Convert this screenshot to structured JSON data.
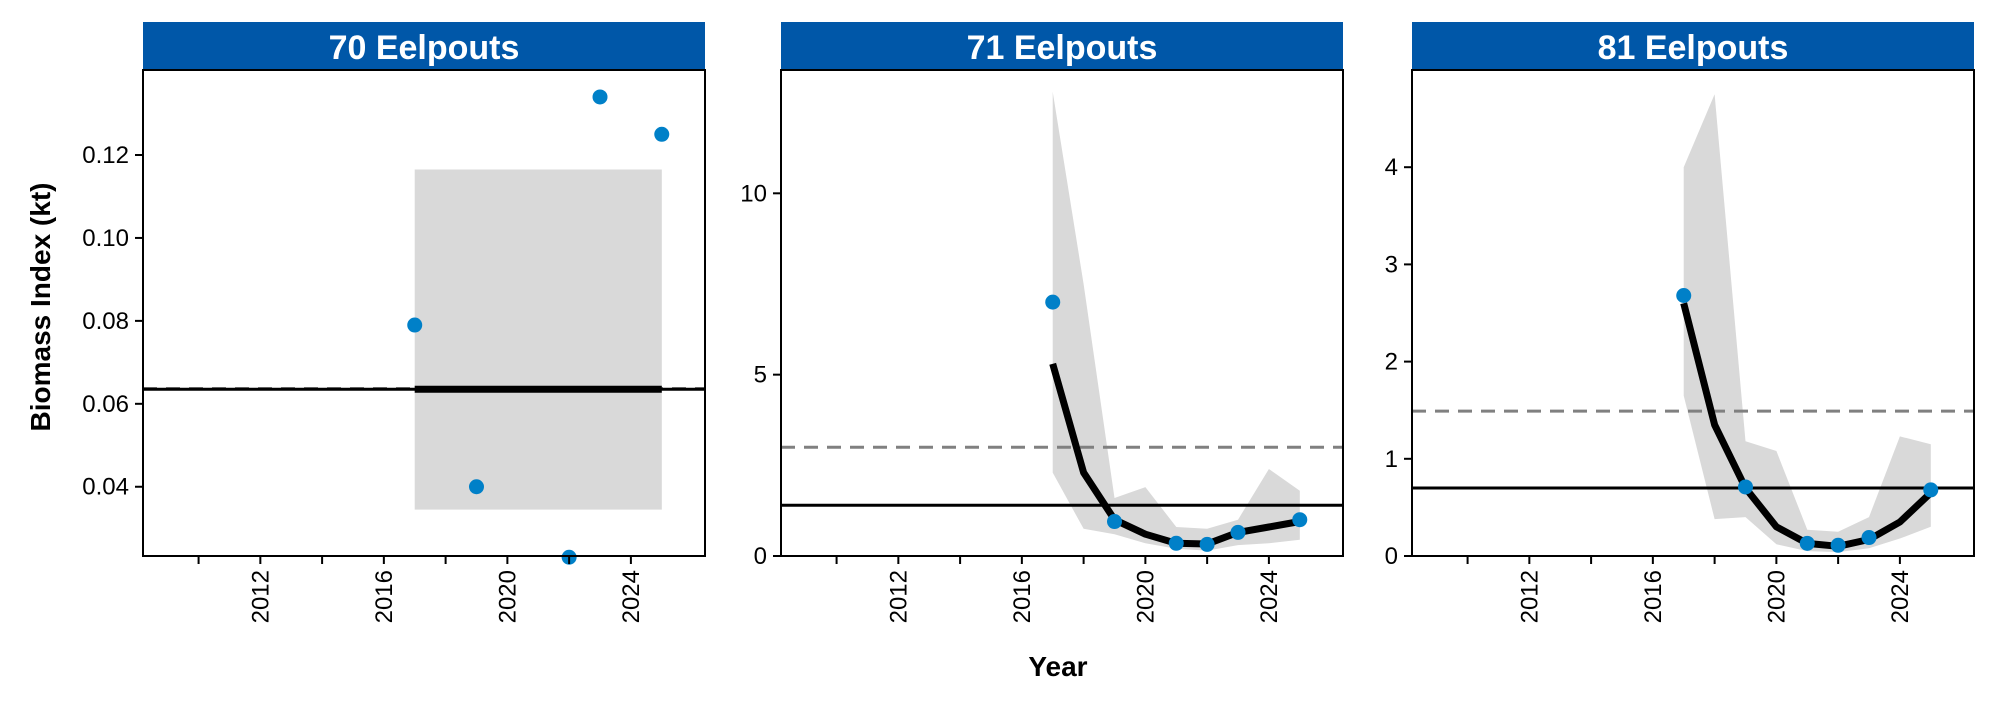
{
  "chart_data": {
    "type": "line",
    "xlabel": "Year",
    "ylabel": "Biomass Index (kt)",
    "colors": {
      "strip": "#0057a8",
      "points": "#0080c8",
      "ribbon": "#d9d9d9",
      "fit_line": "#000000",
      "mean_line": "#000000",
      "dashed_line": "#808080"
    },
    "panels": [
      {
        "title": "70 Eelpouts",
        "xlim": [
          2008.2,
          2026.4
        ],
        "ylim": [
          0.0233,
          0.1405
        ],
        "xticks": [
          2012,
          2016,
          2020,
          2024
        ],
        "minor_xticks": [
          2010,
          2014,
          2018,
          2022
        ],
        "yticks": [
          0.04,
          0.06,
          0.08,
          0.1,
          0.12
        ],
        "ytick_labels": [
          "0.04",
          "0.06",
          "0.08",
          "0.10",
          "0.12"
        ],
        "points": {
          "x": [
            2017,
            2019,
            2022,
            2023,
            2025
          ],
          "y": [
            0.079,
            0.04,
            0.023,
            0.134,
            0.125
          ]
        },
        "fit": {
          "x": [
            2017,
            2025
          ],
          "y": [
            0.0635,
            0.0635
          ]
        },
        "ribbon": {
          "x": [
            2017,
            2025
          ],
          "lower": [
            0.0345,
            0.0345
          ],
          "upper": [
            0.1165,
            0.1165
          ]
        },
        "mean_line": 0.0635,
        "dashed_line": 0.0637
      },
      {
        "title": "71 Eelpouts",
        "xlim": [
          2008.2,
          2026.4
        ],
        "ylim": [
          0,
          13.4
        ],
        "xticks": [
          2012,
          2016,
          2020,
          2024
        ],
        "minor_xticks": [
          2010,
          2014,
          2018,
          2022
        ],
        "yticks": [
          0,
          5,
          10
        ],
        "ytick_labels": [
          "0",
          "5",
          "10"
        ],
        "points": {
          "x": [
            2017,
            2019,
            2021,
            2022,
            2023,
            2025
          ],
          "y": [
            7.0,
            0.95,
            0.35,
            0.32,
            0.65,
            1.0
          ]
        },
        "fit": {
          "x": [
            2017,
            2018,
            2019,
            2020,
            2021,
            2022,
            2023,
            2024,
            2025
          ],
          "y": [
            5.3,
            2.3,
            1.0,
            0.6,
            0.35,
            0.33,
            0.65,
            0.8,
            0.95
          ]
        },
        "ribbon": {
          "x": [
            2017,
            2018,
            2019,
            2020,
            2021,
            2022,
            2023,
            2024,
            2025
          ],
          "lower": [
            2.3,
            0.75,
            0.6,
            0.35,
            0.2,
            0.15,
            0.3,
            0.35,
            0.45
          ],
          "upper": [
            12.8,
            7.5,
            1.6,
            1.9,
            0.8,
            0.75,
            1.0,
            2.4,
            1.8
          ]
        },
        "mean_line": 1.4,
        "dashed_line": 3.0
      },
      {
        "title": "81 Eelpouts",
        "xlim": [
          2008.2,
          2026.4
        ],
        "ylim": [
          0,
          5.0
        ],
        "xticks": [
          2012,
          2016,
          2020,
          2024
        ],
        "minor_xticks": [
          2010,
          2014,
          2018,
          2022
        ],
        "yticks": [
          0,
          1,
          2,
          3,
          4
        ],
        "ytick_labels": [
          "0",
          "1",
          "2",
          "3",
          "4"
        ],
        "points": {
          "x": [
            2017,
            2019,
            2021,
            2022,
            2023,
            2025
          ],
          "y": [
            2.68,
            0.71,
            0.13,
            0.11,
            0.19,
            0.68
          ]
        },
        "fit": {
          "x": [
            2017,
            2018,
            2019,
            2020,
            2021,
            2022,
            2023,
            2024,
            2025
          ],
          "y": [
            2.6,
            1.35,
            0.7,
            0.3,
            0.13,
            0.1,
            0.17,
            0.35,
            0.65
          ]
        },
        "ribbon": {
          "x": [
            2017,
            2018,
            2019,
            2020,
            2021,
            2022,
            2023,
            2024,
            2025
          ],
          "lower": [
            1.65,
            0.38,
            0.4,
            0.12,
            0.05,
            0.04,
            0.08,
            0.18,
            0.3
          ],
          "upper": [
            4.0,
            4.75,
            1.18,
            1.08,
            0.27,
            0.25,
            0.4,
            1.23,
            1.15
          ]
        },
        "mean_line": 0.7,
        "dashed_line": 1.49
      }
    ]
  }
}
